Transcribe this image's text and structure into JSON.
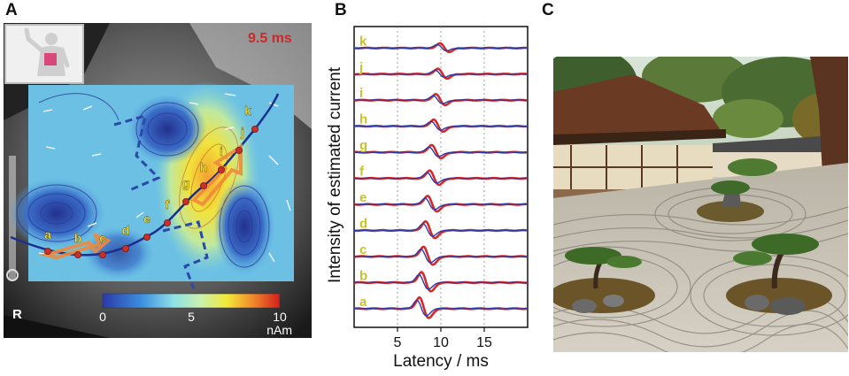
{
  "panels": {
    "a": {
      "letter": "A",
      "time_label": "9.5 ms",
      "side_label": "R",
      "colorbar": {
        "ticks": [
          "0",
          "5",
          "10"
        ],
        "unit": "nAm",
        "min": 0,
        "max": 10
      },
      "point_labels": [
        "a",
        "b",
        "c",
        "d",
        "e",
        "f",
        "g",
        "h",
        "i",
        "j",
        "k"
      ],
      "colors": {
        "time_label": "#cc2a2a",
        "path": "#1c2f8e",
        "points": "#c8302a",
        "arrows": "#f08a3a",
        "point_labels": "#f4e23c"
      }
    },
    "b": {
      "letter": "B",
      "ylabel": "Intensity of estimated current",
      "xlabel": "Latency / ms",
      "trace_labels": [
        "k",
        "j",
        "i",
        "h",
        "g",
        "f",
        "e",
        "d",
        "c",
        "b",
        "a"
      ],
      "xticks": [
        "5",
        "10",
        "15"
      ],
      "x_range": [
        0,
        20
      ],
      "tick_values": [
        5,
        10,
        15
      ],
      "colors": {
        "trace_red": "#d42a2a",
        "trace_blue": "#2a3aa8",
        "labels": "#c9c22a"
      }
    },
    "c": {
      "letter": "C",
      "scene": "japanese-zen-garden"
    }
  }
}
